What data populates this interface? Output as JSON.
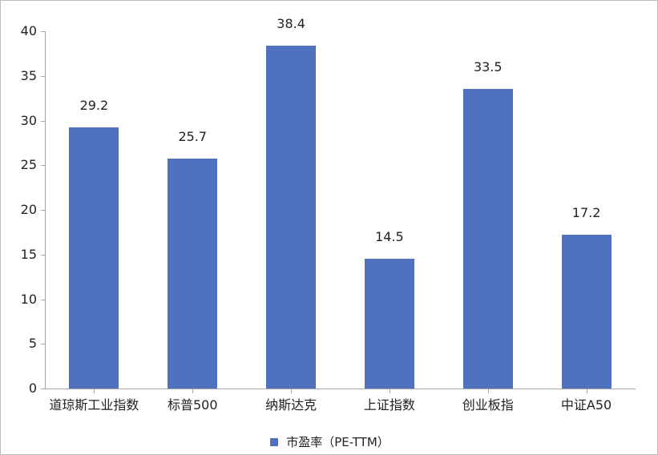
{
  "chart_data": {
    "type": "bar",
    "title": "",
    "xlabel": "",
    "ylabel": "",
    "categories": [
      "道琼斯工业指数",
      "标普500",
      "纳斯达克",
      "上证指数",
      "创业板指",
      "中证A50"
    ],
    "series": [
      {
        "name": "市盈率（PE-TTM）",
        "values": [
          29.2,
          25.7,
          38.4,
          14.5,
          33.5,
          17.2
        ],
        "color": "#5071be"
      }
    ],
    "data_labels": [
      "29.2",
      "25.7",
      "38.4",
      "14.5",
      "33.5",
      "17.2"
    ],
    "ylim": [
      0,
      40
    ],
    "yticks": [
      0,
      5,
      10,
      15,
      20,
      25,
      30,
      35,
      40
    ],
    "grid": false,
    "legend_position": "bottom"
  },
  "legend": {
    "label": "市盈率（PE-TTM）"
  }
}
